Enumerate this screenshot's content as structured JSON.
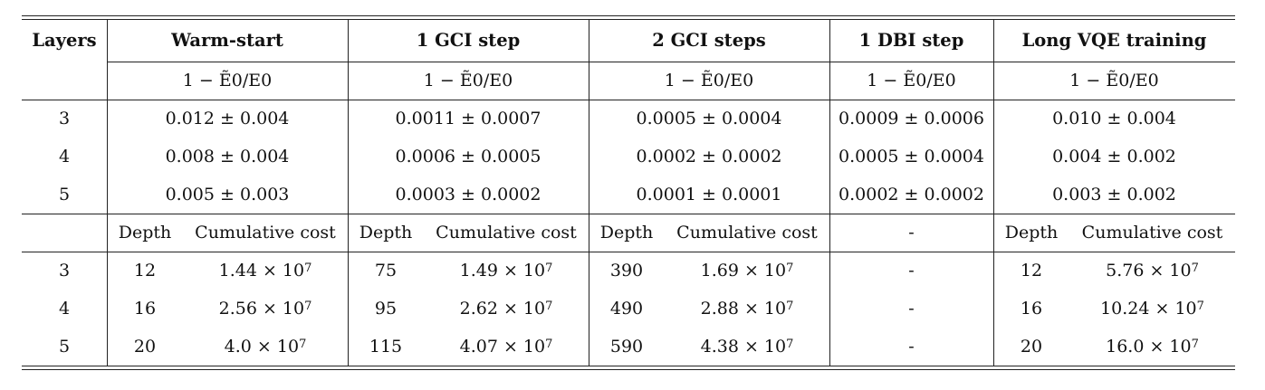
{
  "header": {
    "layers": "Layers",
    "groups": [
      "Warm-start",
      "1 GCI step",
      "2 GCI steps",
      "1 DBI step",
      "Long VQE training"
    ]
  },
  "metric_label": "1 − Ẽ0/E0",
  "energy_rows": [
    {
      "layers": "3",
      "values": [
        "0.012 ± 0.004",
        "0.0011 ± 0.0007",
        "0.0005 ± 0.0004",
        "0.0009 ± 0.0006",
        "0.010 ± 0.004"
      ]
    },
    {
      "layers": "4",
      "values": [
        "0.008 ± 0.004",
        "0.0006 ± 0.0005",
        "0.0002 ± 0.0002",
        "0.0005 ± 0.0004",
        "0.004 ± 0.002"
      ]
    },
    {
      "layers": "5",
      "values": [
        "0.005 ± 0.003",
        "0.0003 ± 0.0002",
        "0.0001 ± 0.0001",
        "0.0002 ± 0.0002",
        "0.003 ± 0.002"
      ]
    }
  ],
  "cost_header": {
    "depth": "Depth",
    "cumulative": "Cumulative cost",
    "dash": "-"
  },
  "cost_rows": [
    {
      "layers": "3",
      "warm_depth": "12",
      "warm_cost": "1.44 × 10",
      "gci1_depth": "75",
      "gci1_cost": "1.49 × 10",
      "gci2_depth": "390",
      "gci2_cost": "1.69 × 10",
      "dbi": "-",
      "vqe_depth": "12",
      "vqe_cost": "5.76 × 10"
    },
    {
      "layers": "4",
      "warm_depth": "16",
      "warm_cost": "2.56 × 10",
      "gci1_depth": "95",
      "gci1_cost": "2.62 × 10",
      "gci2_depth": "490",
      "gci2_cost": "2.88 × 10",
      "dbi": "-",
      "vqe_depth": "16",
      "vqe_cost": "10.24 × 10"
    },
    {
      "layers": "5",
      "warm_depth": "20",
      "warm_cost": "4.0 × 10",
      "gci1_depth": "115",
      "gci1_cost": "4.07 × 10",
      "gci2_depth": "590",
      "gci2_cost": "4.38 × 10",
      "dbi": "-",
      "vqe_depth": "20",
      "vqe_cost": "16.0 × 10"
    }
  ],
  "exponent": "7"
}
